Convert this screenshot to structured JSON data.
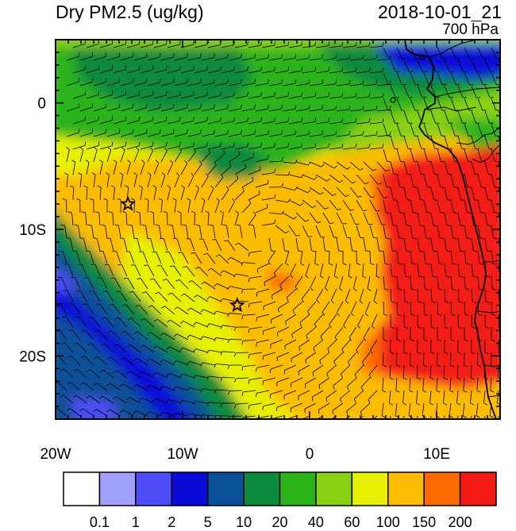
{
  "title": "Dry PM2.5 (ug/kg)",
  "datetime": "2018-10-01_21",
  "level": "700 hPa",
  "lon_labels": [
    "20W",
    "10W",
    "0",
    "10E"
  ],
  "lat_labels": [
    "0",
    "10S",
    "20S"
  ],
  "lon_ticks": [
    -20,
    -10,
    0,
    10
  ],
  "lat_ticks": [
    0,
    -10,
    -20
  ],
  "lon_range": [
    -20,
    15
  ],
  "lat_range": [
    -25,
    5
  ],
  "colorbar": {
    "colors": [
      "#ffffff",
      "#a0a0f8",
      "#4d4df8",
      "#0a0ad8",
      "#0a5098",
      "#0a8a3c",
      "#2ab41a",
      "#88d012",
      "#e6f000",
      "#fcbc00",
      "#fc6c00",
      "#f41a14"
    ],
    "labels": [
      "0.1",
      "1",
      "2",
      "5",
      "10",
      "20",
      "40",
      "60",
      "100",
      "150",
      "200"
    ]
  },
  "markers": [
    {
      "name": "star-marker-1",
      "lon": -14.3,
      "lat": -8.0
    },
    {
      "name": "star-marker-2",
      "lon": -5.7,
      "lat": -16.0
    }
  ]
}
